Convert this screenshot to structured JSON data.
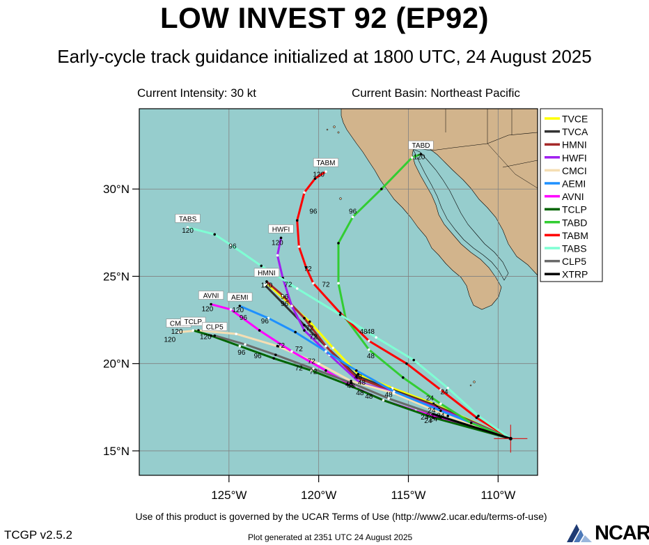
{
  "title": "LOW INVEST 92 (EP92)",
  "subtitle": "Early-cycle track guidance initialized at 1800 UTC, 24 August 2025",
  "current_intensity": "Current Intensity: 30 kt",
  "current_basin": "Current Basin: Northeast Pacific",
  "footer": {
    "terms": "Use of this product is governed by the UCAR Terms of Use (http://www2.ucar.edu/terms-of-use)",
    "version": "TCGP v2.5.2",
    "generated": "Plot generated at 2351 UTC   24 August 2025",
    "logo": "NCAR"
  },
  "colors": {
    "ocean": "#96cdcd",
    "land": "#d2b48c",
    "grid": "#808080"
  },
  "map": {
    "lon_range": [
      -130,
      -107.8
    ],
    "lat_range": [
      13.6,
      34.6
    ],
    "lon_ticks": [
      -125,
      -120,
      -115,
      -110
    ],
    "lat_ticks": [
      15,
      20,
      25,
      30
    ],
    "lon_tick_labels": [
      "125°W",
      "120°W",
      "115°W",
      "110°W"
    ],
    "lat_tick_labels": [
      "15°N",
      "20°N",
      "25°N",
      "30°N"
    ]
  },
  "initial_position": {
    "lon": -109.3,
    "lat": 15.7
  },
  "legend": [
    {
      "name": "TVCE",
      "color": "#ffff00"
    },
    {
      "name": "TVCA",
      "color": "#333333"
    },
    {
      "name": "HMNI",
      "color": "#a52a2a"
    },
    {
      "name": "HWFI",
      "color": "#a020f0"
    },
    {
      "name": "CMCI",
      "color": "#f5deb3"
    },
    {
      "name": "AEMI",
      "color": "#1e90ff"
    },
    {
      "name": "AVNI",
      "color": "#ff00ff"
    },
    {
      "name": "TCLP",
      "color": "#006400"
    },
    {
      "name": "TABD",
      "color": "#32cd32"
    },
    {
      "name": "TABM",
      "color": "#ff0000"
    },
    {
      "name": "TABS",
      "color": "#7fffd4"
    },
    {
      "name": "CLP5",
      "color": "#696969"
    },
    {
      "name": "XTRP",
      "color": "#000000"
    }
  ],
  "tracks": [
    {
      "name": "TVCE",
      "color": "#ffff00",
      "label": "TVCE",
      "points": [
        [
          -109.3,
          15.7
        ],
        [
          -113.6,
          17.7
        ],
        [
          -115.9,
          18.6
        ],
        [
          -117.8,
          19.4
        ],
        [
          -119.2,
          20.9
        ],
        [
          -120.5,
          22.4
        ],
        [
          -122.9,
          24.6
        ]
      ],
      "hours": [
        "24",
        "48"
      ],
      "show_label": false
    },
    {
      "name": "TVCA",
      "color": "#333333",
      "label": "TVCA",
      "points": [
        [
          -109.3,
          15.7
        ],
        [
          -113.5,
          17.6
        ],
        [
          -115.9,
          18.5
        ],
        [
          -117.9,
          19.3
        ],
        [
          -119.4,
          20.8
        ],
        [
          -120.8,
          22.2
        ],
        [
          -123.0,
          24.5
        ]
      ],
      "hours": [],
      "show_label": false
    },
    {
      "name": "HMNI",
      "color": "#a52a2a",
      "label": "HMNI",
      "points": [
        [
          -109.3,
          15.7
        ],
        [
          -113.4,
          17.5
        ],
        [
          -115.8,
          18.4
        ],
        [
          -117.9,
          19.2
        ],
        [
          -119.6,
          21.0
        ],
        [
          -120.8,
          22.6
        ],
        [
          -122.0,
          23.9
        ],
        [
          -122.9,
          24.7
        ]
      ],
      "hours": [
        "24",
        "48",
        "72",
        "96",
        "120"
      ],
      "show_label": true
    },
    {
      "name": "HWFI",
      "color": "#a020f0",
      "label": "HWFI",
      "points": [
        [
          -109.3,
          15.7
        ],
        [
          -113.3,
          17.4
        ],
        [
          -115.6,
          18.3
        ],
        [
          -117.7,
          18.9
        ],
        [
          -119.4,
          20.5
        ],
        [
          -120.8,
          21.9
        ],
        [
          -121.5,
          23.3
        ],
        [
          -122.0,
          24.9
        ],
        [
          -122.3,
          26.2
        ],
        [
          -122.1,
          27.2
        ]
      ],
      "hours": [
        "24",
        "48",
        "72",
        "96",
        "120"
      ],
      "show_label": true
    },
    {
      "name": "CMCI",
      "color": "#f5deb3",
      "label": "CMCI",
      "points": [
        [
          -109.3,
          15.7
        ],
        [
          -112.8,
          17.0
        ],
        [
          -115.8,
          18.3
        ],
        [
          -118.2,
          19.0
        ],
        [
          -120.0,
          20.0
        ],
        [
          -122.3,
          21.0
        ],
        [
          -124.6,
          21.7
        ],
        [
          -126.7,
          21.9
        ],
        [
          -127.8,
          21.8
        ]
      ],
      "hours": [
        "24",
        "48",
        "72",
        "96",
        "120"
      ],
      "show_label": true
    },
    {
      "name": "AEMI",
      "color": "#1e90ff",
      "label": "AEMI",
      "points": [
        [
          -109.3,
          15.7
        ],
        [
          -113.2,
          17.3
        ],
        [
          -115.8,
          18.4
        ],
        [
          -117.9,
          19.6
        ],
        [
          -119.6,
          20.7
        ],
        [
          -121.3,
          21.8
        ],
        [
          -122.8,
          22.6
        ],
        [
          -124.4,
          23.3
        ]
      ],
      "hours": [
        "24",
        "48",
        "72",
        "96",
        "120"
      ],
      "show_label": true
    },
    {
      "name": "AVNI",
      "color": "#ff00ff",
      "label": "AVNI",
      "points": [
        [
          -109.3,
          15.7
        ],
        [
          -113.2,
          16.9
        ],
        [
          -114.6,
          17.3
        ],
        [
          -116.4,
          17.9
        ],
        [
          -117.9,
          18.6
        ],
        [
          -119.6,
          19.6
        ],
        [
          -121.5,
          20.7
        ],
        [
          -123.3,
          21.9
        ],
        [
          -124.9,
          23.1
        ],
        [
          -126.0,
          23.4
        ]
      ],
      "hours": [
        "24",
        "48",
        "72",
        "96",
        "120"
      ],
      "show_label": true
    },
    {
      "name": "TCLP",
      "color": "#006400",
      "label": "TCLP",
      "points": [
        [
          -109.3,
          15.7
        ],
        [
          -113.6,
          16.9
        ],
        [
          -116.4,
          17.9
        ],
        [
          -118.4,
          18.8
        ],
        [
          -120.4,
          19.6
        ],
        [
          -122.5,
          20.3
        ],
        [
          -124.4,
          21.0
        ],
        [
          -126.0,
          21.6
        ],
        [
          -127.0,
          21.9
        ]
      ],
      "hours": [
        "24",
        "48",
        "72",
        "96",
        "120"
      ],
      "show_label": true
    },
    {
      "name": "TABD",
      "color": "#32cd32",
      "label": "TABD",
      "points": [
        [
          -109.3,
          15.7
        ],
        [
          -111.5,
          16.6
        ],
        [
          -113.2,
          17.7
        ],
        [
          -115.3,
          19.2
        ],
        [
          -117.2,
          20.8
        ],
        [
          -118.5,
          22.6
        ],
        [
          -118.9,
          24.6
        ],
        [
          -118.9,
          26.9
        ],
        [
          -118.1,
          28.4
        ],
        [
          -116.5,
          30.0
        ],
        [
          -114.8,
          31.8
        ],
        [
          -114.3,
          32.0
        ]
      ],
      "hours": [
        "24",
        "48",
        "72",
        "96",
        "120"
      ],
      "show_label": true
    },
    {
      "name": "TABM",
      "color": "#ff0000",
      "label": "TABM",
      "points": [
        [
          -109.3,
          15.7
        ],
        [
          -111.2,
          16.9
        ],
        [
          -113.2,
          18.5
        ],
        [
          -115.1,
          20.0
        ],
        [
          -117.2,
          21.3
        ],
        [
          -118.8,
          22.9
        ],
        [
          -120.3,
          24.6
        ],
        [
          -120.7,
          25.5
        ],
        [
          -121.1,
          26.7
        ],
        [
          -121.2,
          28.2
        ],
        [
          -120.8,
          29.8
        ],
        [
          -120.2,
          30.6
        ],
        [
          -119.6,
          31.0
        ]
      ],
      "hours": [
        "24",
        "48",
        "72",
        "96",
        "120"
      ],
      "show_label": true
    },
    {
      "name": "TABS",
      "color": "#7fffd4",
      "label": "TABS",
      "points": [
        [
          -109.3,
          15.7
        ],
        [
          -111.1,
          17.0
        ],
        [
          -112.8,
          18.6
        ],
        [
          -114.7,
          20.2
        ],
        [
          -116.8,
          21.5
        ],
        [
          -118.8,
          22.8
        ],
        [
          -121.2,
          24.3
        ],
        [
          -123.2,
          25.6
        ],
        [
          -124.9,
          26.8
        ],
        [
          -125.8,
          27.4
        ],
        [
          -127.3,
          27.8
        ]
      ],
      "hours": [
        "24",
        "48",
        "72",
        "96",
        "120"
      ],
      "show_label": true
    },
    {
      "name": "CLP5",
      "color": "#696969",
      "label": "CLP5",
      "points": [
        [
          -109.3,
          15.7
        ],
        [
          -113.3,
          17.0
        ],
        [
          -116.1,
          18.0
        ],
        [
          -118.2,
          18.9
        ],
        [
          -120.3,
          19.7
        ],
        [
          -122.4,
          20.5
        ],
        [
          -124.1,
          21.1
        ],
        [
          -125.8,
          21.6
        ]
      ],
      "hours": [
        "24",
        "48",
        "72",
        "96",
        "120"
      ],
      "show_label": true
    },
    {
      "name": "XTRP",
      "color": "#000000",
      "label": "XTRP",
      "points": [
        [
          -109.3,
          15.7
        ],
        [
          -113.6,
          17.1
        ]
      ],
      "hours": [],
      "show_label": false
    }
  ],
  "label_positions_text": [
    {
      "text": "120",
      "lon": -122.9,
      "lat": 24.35
    },
    {
      "text": "96",
      "lon": -121.9,
      "lat": 23.7
    },
    {
      "text": "120",
      "lon": -122.3,
      "lat": 26.8
    },
    {
      "text": "96",
      "lon": -121.9,
      "lat": 23.3
    },
    {
      "text": "120",
      "lon": -124.5,
      "lat": 22.95
    },
    {
      "text": "96",
      "lon": -124.2,
      "lat": 22.5
    },
    {
      "text": "96",
      "lon": -123.0,
      "lat": 22.3
    },
    {
      "text": "120",
      "lon": -126.2,
      "lat": 23.0
    },
    {
      "text": "120",
      "lon": -127.9,
      "lat": 21.7
    },
    {
      "text": "120",
      "lon": -128.3,
      "lat": 21.25
    },
    {
      "text": "120",
      "lon": -126.3,
      "lat": 21.4
    },
    {
      "text": "96",
      "lon": -124.3,
      "lat": 20.5
    },
    {
      "text": "96",
      "lon": -123.4,
      "lat": 20.3
    },
    {
      "text": "72",
      "lon": -122.1,
      "lat": 20.9
    },
    {
      "text": "72",
      "lon": -121.1,
      "lat": 20.7
    },
    {
      "text": "72",
      "lon": -120.5,
      "lat": 21.9
    },
    {
      "text": "72",
      "lon": -120.3,
      "lat": 21.4
    },
    {
      "text": "72",
      "lon": -120.4,
      "lat": 20.0
    },
    {
      "text": "72",
      "lon": -121.1,
      "lat": 19.6
    },
    {
      "text": "72",
      "lon": -120.3,
      "lat": 19.4
    },
    {
      "text": "72",
      "lon": -121.7,
      "lat": 24.4
    },
    {
      "text": "72",
      "lon": -120.6,
      "lat": 25.3
    },
    {
      "text": "72",
      "lon": -119.6,
      "lat": 24.4
    },
    {
      "text": "96",
      "lon": -120.3,
      "lat": 28.6
    },
    {
      "text": "120",
      "lon": -120.0,
      "lat": 30.7
    },
    {
      "text": "96",
      "lon": -118.1,
      "lat": 28.6
    },
    {
      "text": "120",
      "lon": -114.4,
      "lat": 31.7
    },
    {
      "text": "96",
      "lon": -124.8,
      "lat": 26.6
    },
    {
      "text": "120",
      "lon": -127.3,
      "lat": 27.5
    },
    {
      "text": "48",
      "lon": -117.5,
      "lat": 21.7
    },
    {
      "text": "48",
      "lon": -117.1,
      "lat": 21.7
    },
    {
      "text": "48",
      "lon": -117.1,
      "lat": 20.3
    },
    {
      "text": "48",
      "lon": -117.8,
      "lat": 19.1
    },
    {
      "text": "48",
      "lon": -117.6,
      "lat": 18.8
    },
    {
      "text": "48",
      "lon": -118.3,
      "lat": 18.7
    },
    {
      "text": "48",
      "lon": -118.2,
      "lat": 18.6
    },
    {
      "text": "48",
      "lon": -117.7,
      "lat": 18.2
    },
    {
      "text": "48",
      "lon": -117.2,
      "lat": 18.0
    },
    {
      "text": "48",
      "lon": -116.1,
      "lat": 18.1
    },
    {
      "text": "24",
      "lon": -113.8,
      "lat": 17.9
    },
    {
      "text": "24",
      "lon": -113.0,
      "lat": 18.25
    },
    {
      "text": "24",
      "lon": -113.2,
      "lat": 16.9
    },
    {
      "text": "24",
      "lon": -113.7,
      "lat": 17.2
    },
    {
      "text": "24",
      "lon": -113.8,
      "lat": 16.9
    },
    {
      "text": "24",
      "lon": -114.1,
      "lat": 16.8
    },
    {
      "text": "24",
      "lon": -113.6,
      "lat": 16.7
    },
    {
      "text": "24",
      "lon": -113.9,
      "lat": 16.6
    }
  ]
}
